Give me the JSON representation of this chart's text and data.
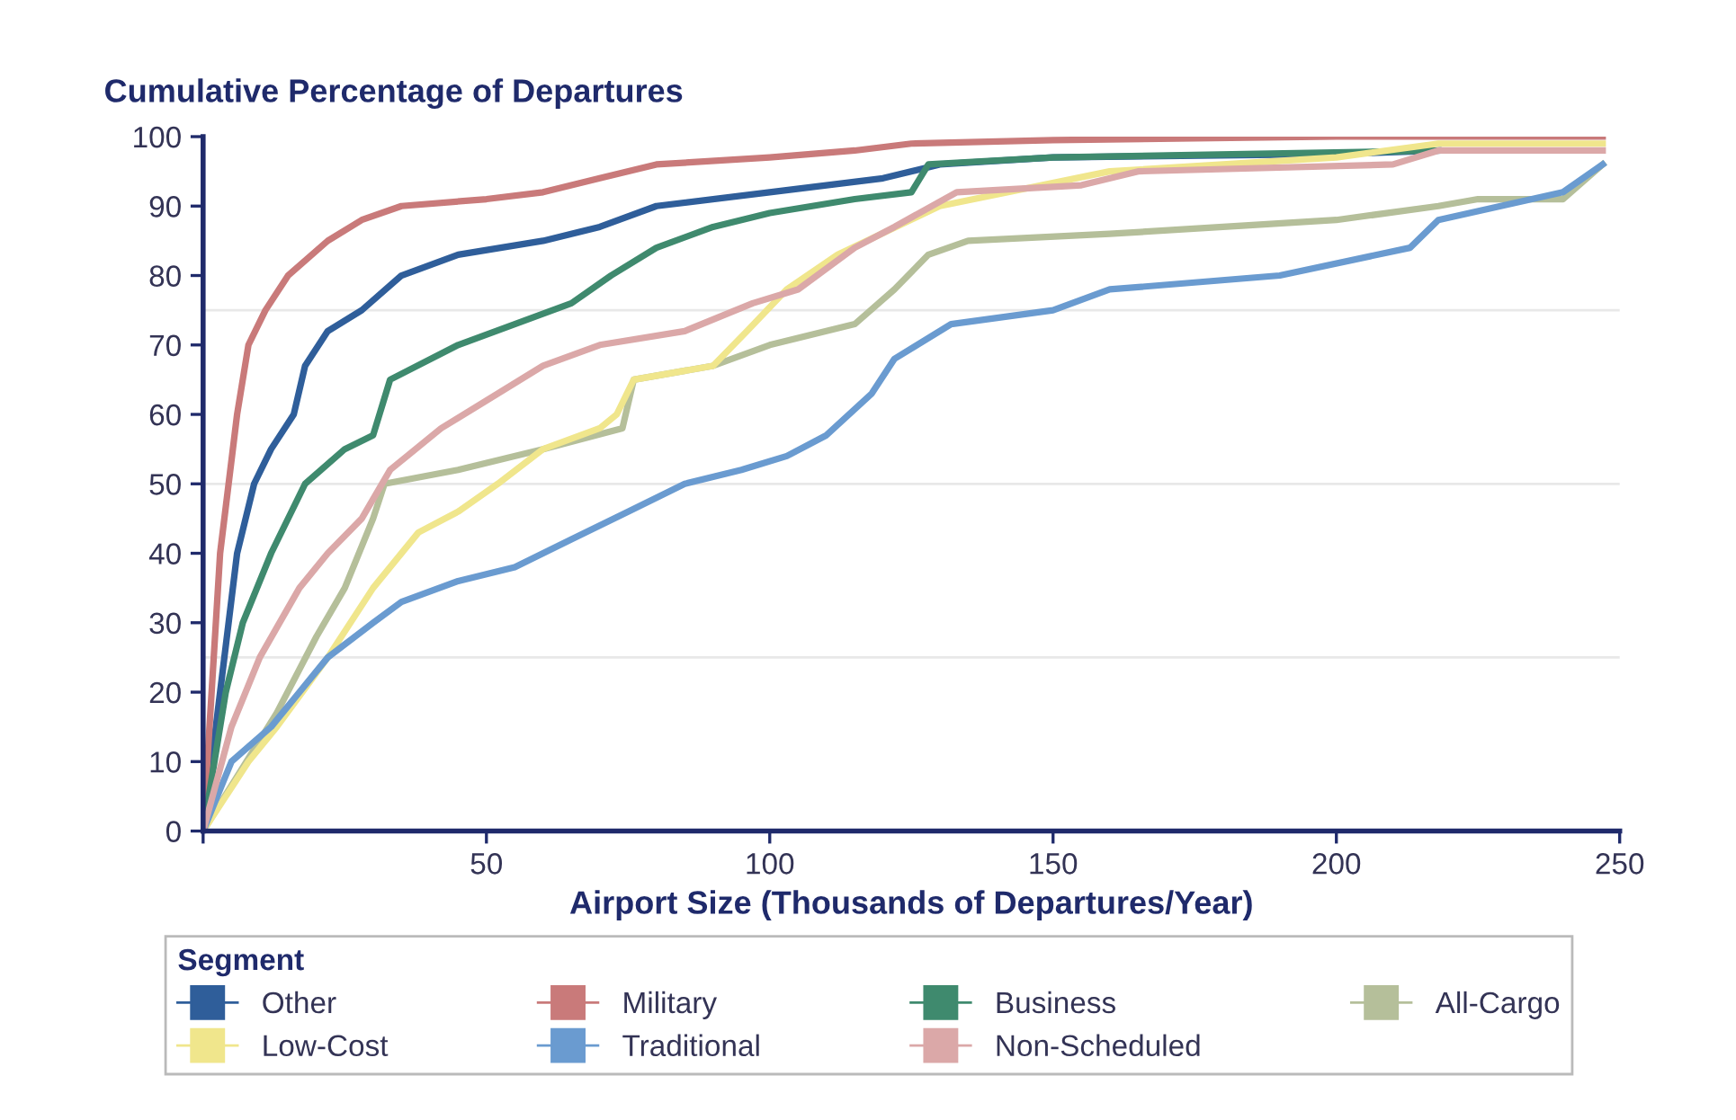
{
  "chart_data": {
    "type": "line",
    "ylabel": "Cumulative Percentage of Departures",
    "xlabel": "Airport Size (Thousands of Departures/Year)",
    "legend_title": "Segment",
    "legend": "bottom",
    "grid": false,
    "line_style": "solid",
    "marker": "none",
    "xlim": [
      0,
      250
    ],
    "xticks": [
      {
        "value": 0,
        "label": null
      },
      50,
      100,
      150,
      200,
      250
    ],
    "ylim": [
      0,
      100
    ],
    "yticks": [
      0,
      10,
      20,
      30,
      40,
      50,
      60,
      70,
      80,
      90,
      100
    ],
    "ref_lines": [
      {
        "axis": "y",
        "value": 25,
        "color": "#e8e8e8"
      },
      {
        "axis": "y",
        "value": 50,
        "color": "#e8e8e8"
      },
      {
        "axis": "y",
        "value": 75,
        "color": "#e8e8e8"
      }
    ],
    "series": [
      {
        "name": "Other",
        "color": "#2f5e9a",
        "x": [
          0,
          3,
          6,
          9,
          12,
          16,
          18,
          22,
          28,
          35,
          45,
          60,
          70,
          80,
          100,
          120,
          130,
          150,
          200,
          218
        ],
        "values": [
          0,
          20,
          40,
          50,
          55,
          60,
          67,
          72,
          75,
          80,
          83,
          85,
          87,
          90,
          92,
          94,
          96,
          97,
          97.5,
          98
        ]
      },
      {
        "name": "Military",
        "color": "#c97a7a",
        "x": [
          0,
          3,
          6,
          8,
          11,
          15,
          22,
          28,
          35,
          50,
          60,
          70,
          80,
          100,
          115,
          125,
          150,
          200,
          247
        ],
        "values": [
          0,
          40,
          60,
          70,
          75,
          80,
          85,
          88,
          90,
          91,
          92,
          94,
          96,
          97,
          98,
          99,
          99.5,
          100,
          100
        ]
      },
      {
        "name": "Business",
        "color": "#3f8a6e",
        "x": [
          0,
          4,
          7,
          12,
          18,
          25,
          30,
          33,
          45,
          55,
          65,
          72,
          80,
          90,
          100,
          115,
          125,
          128,
          150,
          218
        ],
        "values": [
          0,
          20,
          30,
          40,
          50,
          55,
          57,
          65,
          70,
          73,
          76,
          80,
          84,
          87,
          89,
          91,
          92,
          96,
          97,
          98
        ]
      },
      {
        "name": "All-Cargo",
        "color": "#b5bf9a",
        "x": [
          0,
          13,
          20,
          25,
          30,
          32,
          45,
          60,
          74,
          76,
          90,
          100,
          115,
          122,
          128,
          135,
          160,
          180,
          200,
          218,
          225,
          240,
          247
        ],
        "values": [
          0,
          17,
          28,
          35,
          45,
          50,
          52,
          55,
          58,
          65,
          67,
          70,
          73,
          78,
          83,
          85,
          86,
          87,
          88,
          90,
          91,
          91,
          96
        ]
      },
      {
        "name": "Low-Cost",
        "color": "#f0e68c",
        "x": [
          0,
          8,
          13,
          22,
          30,
          38,
          45,
          52,
          60,
          70,
          73,
          76,
          90,
          96,
          103,
          112,
          130,
          160,
          200,
          218,
          247
        ],
        "values": [
          0,
          10,
          15,
          25,
          35,
          43,
          46,
          50,
          55,
          58,
          60,
          65,
          67,
          72,
          78,
          83,
          90,
          95,
          97,
          99,
          99
        ]
      },
      {
        "name": "Traditional",
        "color": "#6a9bd0",
        "x": [
          0,
          5,
          12,
          17,
          22,
          30,
          35,
          45,
          55,
          65,
          75,
          85,
          95,
          103,
          110,
          118,
          122,
          132,
          150,
          160,
          190,
          213,
          218,
          240,
          247
        ],
        "values": [
          0,
          10,
          15,
          20,
          25,
          30,
          33,
          36,
          38,
          42,
          46,
          50,
          52,
          54,
          57,
          63,
          68,
          73,
          75,
          78,
          80,
          84,
          88,
          92,
          96
        ]
      },
      {
        "name": "Non-Scheduled",
        "color": "#dba8a8",
        "x": [
          0,
          5,
          10,
          17,
          22,
          28,
          33,
          42,
          50,
          60,
          70,
          85,
          97,
          105,
          115,
          122,
          133,
          155,
          165,
          210,
          218,
          247
        ],
        "values": [
          0,
          15,
          25,
          35,
          40,
          45,
          52,
          58,
          62,
          67,
          70,
          72,
          76,
          78,
          84,
          87,
          92,
          93,
          95,
          96,
          98,
          98
        ]
      }
    ]
  }
}
